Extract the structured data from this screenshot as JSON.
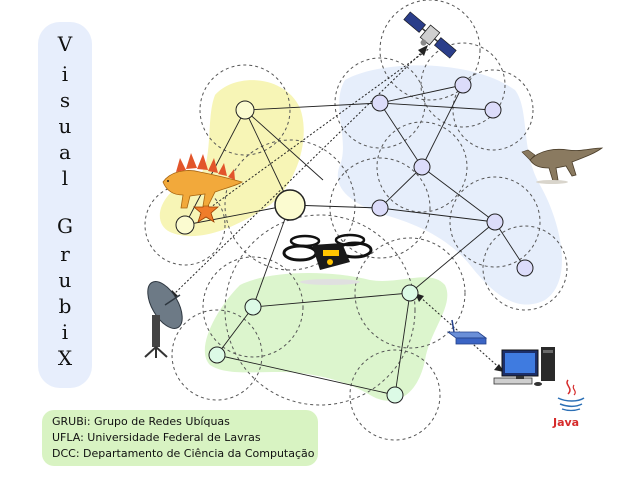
{
  "title": {
    "letters_word1": [
      "V",
      "i",
      "s",
      "u",
      "a",
      "l"
    ],
    "letters_word2": [
      "G",
      "r",
      "u",
      "b",
      "i",
      "X"
    ]
  },
  "info": {
    "lines": [
      "GRUBi: Grupo de Redes Ubíquas",
      "UFLA: Universidade Federal de Lavras",
      "DCC: Departamento de Ciência da Computação"
    ]
  },
  "java_label": "Java",
  "colors": {
    "title_panel": "#e7eefc",
    "info_box": "#d8f3c2",
    "yellow_region": "#f7f5b6",
    "blue_region": "#e6eefb",
    "green_region": "#dcf5cd",
    "yellow_node": "#fbfbd0",
    "blue_node": "#dcdcfa",
    "green_node": "#dcfae6",
    "star": "#f07d2a",
    "java_red": "#d62b2b"
  },
  "icons": [
    "satellite-icon",
    "dinosaur-stegosaurus-icon",
    "star-icon",
    "velociraptor-icon",
    "quadcopter-drone-icon",
    "satellite-dish-icon",
    "wireless-router-icon",
    "desktop-computer-icon",
    "java-logo-icon"
  ]
}
